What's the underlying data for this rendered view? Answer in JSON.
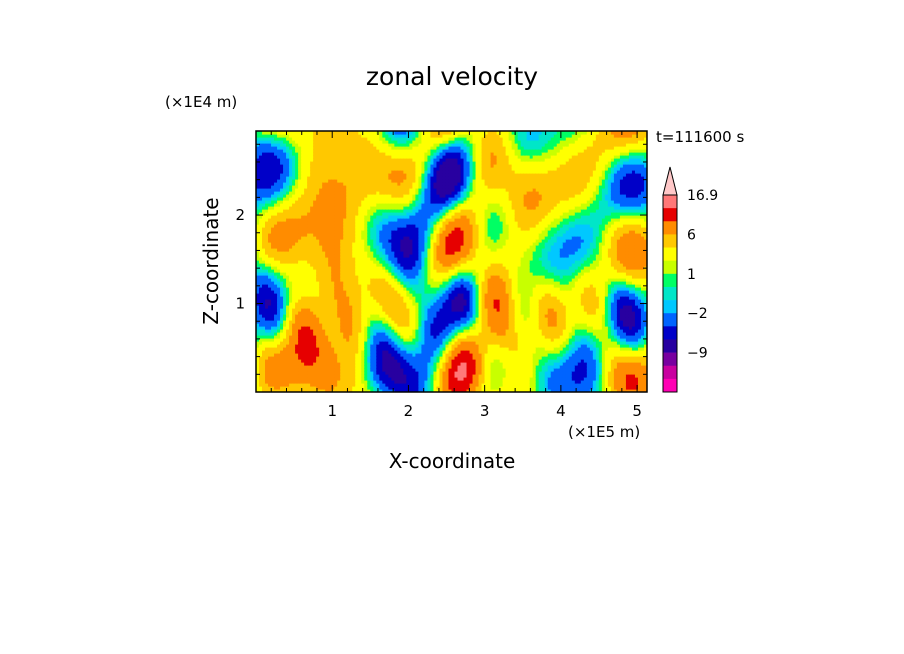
{
  "chart_data": {
    "type": "heatmap",
    "title": "zonal velocity",
    "xlabel": "X-coordinate",
    "ylabel": "Z-coordinate",
    "x_unit": "(×1E5 m)",
    "y_unit": "(×1E4 m)",
    "time_label": "t=111600 s",
    "xlim": [
      0,
      5.13
    ],
    "ylim": [
      0,
      2.95
    ],
    "x_ticks": [
      "1",
      "2",
      "3",
      "4",
      "5"
    ],
    "x_tick_values": [
      1,
      2,
      3,
      4,
      5
    ],
    "y_ticks": [
      "1",
      "2"
    ],
    "y_tick_values": [
      1,
      2
    ],
    "colorbar": {
      "levels_low_to_high": [
        -15,
        -12,
        -9,
        -6,
        -4,
        -2,
        -1,
        0,
        1,
        2,
        4,
        6,
        9,
        12,
        16.9
      ],
      "colors_low_to_high": [
        "#ff00b4",
        "#c800a0",
        "#7800a0",
        "#2800a0",
        "#0000c8",
        "#0064ff",
        "#00c8ff",
        "#00e6c8",
        "#00ff64",
        "#c8ff00",
        "#ffff00",
        "#ffc800",
        "#ff8c00",
        "#e60000",
        "#ff7878",
        "#ffc8c8"
      ],
      "labels": [
        "16.9",
        "6",
        "1",
        "−2",
        "−9"
      ],
      "label_values": [
        16.9,
        6,
        1,
        -2,
        -9
      ],
      "extend": "max"
    }
  }
}
